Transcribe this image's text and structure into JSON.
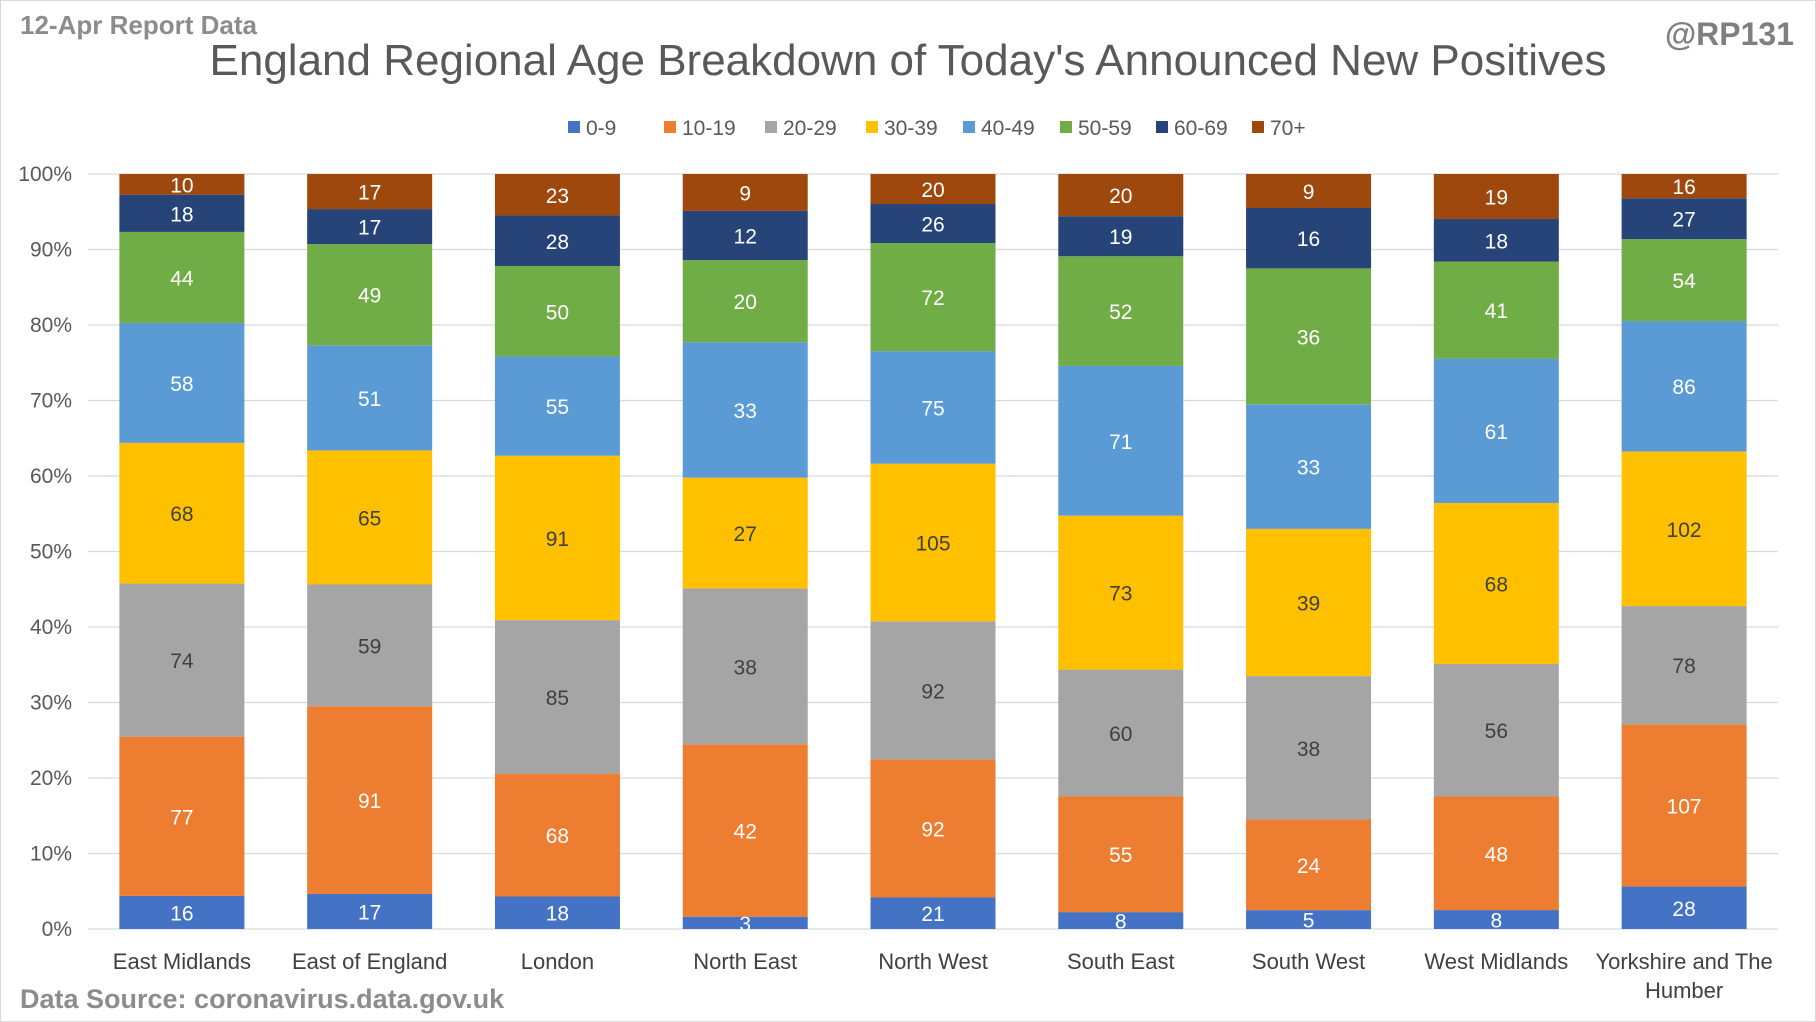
{
  "report_label": "12-Apr Report Data",
  "handle": "@RP131",
  "source": "Data Source: coronavirus.data.gov.uk",
  "chart_data": {
    "type": "bar",
    "stacking": "percent",
    "title": "England Regional Age Breakdown of Today's Announced New Positives",
    "xlabel": "",
    "ylabel": "",
    "ylim": [
      0,
      100
    ],
    "y_ticks": [
      "0%",
      "10%",
      "20%",
      "30%",
      "40%",
      "50%",
      "60%",
      "70%",
      "80%",
      "90%",
      "100%"
    ],
    "grid": true,
    "legend_position": "top",
    "categories": [
      [
        "East Midlands"
      ],
      [
        "East of England"
      ],
      [
        "London"
      ],
      [
        "North East"
      ],
      [
        "North West"
      ],
      [
        "South East"
      ],
      [
        "South West"
      ],
      [
        "West Midlands"
      ],
      [
        "Yorkshire and The",
        "Humber"
      ]
    ],
    "series": [
      {
        "name": "0-9",
        "color": "#4472c4",
        "values": [
          16,
          17,
          18,
          3,
          21,
          8,
          5,
          8,
          28
        ]
      },
      {
        "name": "10-19",
        "color": "#ed7d31",
        "values": [
          77,
          91,
          68,
          42,
          92,
          55,
          24,
          48,
          107
        ]
      },
      {
        "name": "20-29",
        "color": "#a5a5a5",
        "values": [
          74,
          59,
          85,
          38,
          92,
          60,
          38,
          56,
          78
        ]
      },
      {
        "name": "30-39",
        "color": "#ffc000",
        "values": [
          68,
          65,
          91,
          27,
          105,
          73,
          39,
          68,
          102
        ]
      },
      {
        "name": "40-49",
        "color": "#5b9bd5",
        "values": [
          58,
          51,
          55,
          33,
          75,
          71,
          33,
          61,
          86
        ]
      },
      {
        "name": "50-59",
        "color": "#70ad47",
        "values": [
          44,
          49,
          50,
          20,
          72,
          52,
          36,
          41,
          54
        ]
      },
      {
        "name": "60-69",
        "color": "#264478",
        "values": [
          18,
          17,
          28,
          12,
          26,
          19,
          16,
          18,
          27
        ]
      },
      {
        "name": "70+",
        "color": "#9e480e",
        "values": [
          10,
          17,
          23,
          9,
          20,
          20,
          9,
          19,
          16
        ]
      }
    ],
    "label_colors": {
      "light": "#ffffff",
      "dark": "#404040"
    }
  }
}
